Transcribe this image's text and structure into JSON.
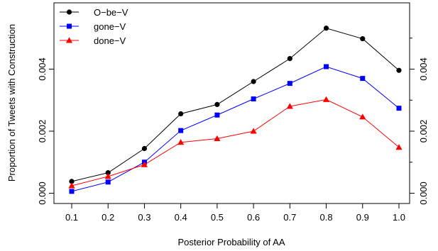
{
  "chart_data": {
    "type": "line",
    "title": "",
    "xlabel": "Posterior Probability of AA",
    "ylabel": "Proportion of Tweets with Construction",
    "categories": [
      "0.1",
      "0.2",
      "0.3",
      "0.4",
      "0.5",
      "0.6",
      "0.7",
      "0.8",
      "0.9",
      "1.0"
    ],
    "x": [
      0.1,
      0.2,
      0.3,
      0.4,
      0.5,
      0.6,
      0.7,
      0.8,
      0.9,
      1.0
    ],
    "ylim": [
      0,
      0.0055
    ],
    "y_ticks": [
      "0.000",
      "0.002",
      "0.004"
    ],
    "y_tick_values": [
      0,
      0.002,
      0.004
    ],
    "right_axis_ticks": [
      "0.000",
      "0.002",
      "0.004"
    ],
    "grid": false,
    "legend_position": "top-left",
    "series": [
      {
        "name": "O−be−V",
        "color": "#000000",
        "marker": "circle",
        "values": [
          0.00038,
          0.00066,
          0.00144,
          0.00256,
          0.00286,
          0.0036,
          0.00434,
          0.00532,
          0.00498,
          0.00396
        ]
      },
      {
        "name": "gone−V",
        "color": "#0000ff",
        "marker": "square",
        "values": [
          6e-05,
          0.00036,
          0.001,
          0.00202,
          0.00252,
          0.00304,
          0.00354,
          0.00408,
          0.0037,
          0.00274
        ]
      },
      {
        "name": "done−V",
        "color": "#ff0000",
        "marker": "triangle",
        "values": [
          0.00024,
          0.00054,
          0.00092,
          0.00164,
          0.00176,
          0.002,
          0.0028,
          0.00302,
          0.00246,
          0.00148
        ]
      }
    ]
  }
}
